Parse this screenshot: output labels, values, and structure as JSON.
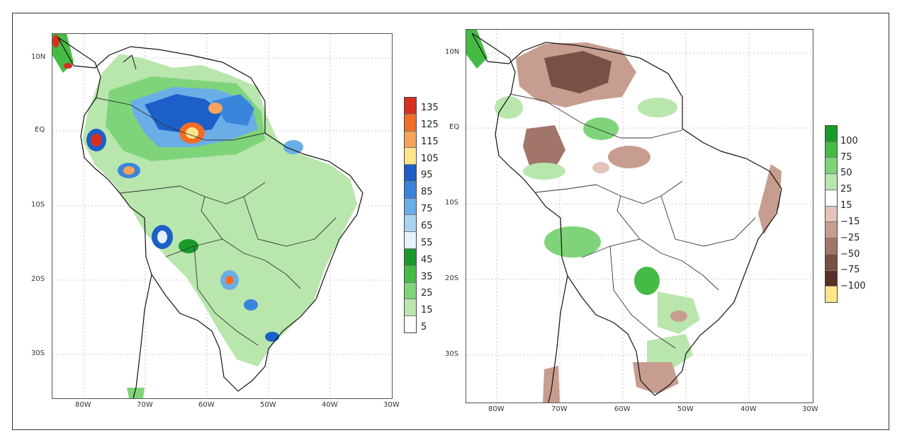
{
  "maps": [
    {
      "id": "left",
      "lat_labels": [
        "10N",
        "EQ",
        "10S",
        "20S",
        "30S"
      ],
      "lon_labels": [
        "80W",
        "70W",
        "60W",
        "50W",
        "40W",
        "30W"
      ],
      "legend": {
        "labels": [
          "135",
          "125",
          "115",
          "105",
          "95",
          "85",
          "75",
          "65",
          "55",
          "45",
          "35",
          "25",
          "15",
          "5"
        ],
        "colors": [
          "#d7301f",
          "#f46d25",
          "#f5a35a",
          "#fde68a",
          "#1d5fc8",
          "#3a85dc",
          "#6aaee8",
          "#a8d4f2",
          "#e3f3fb",
          "#1a9a2a",
          "#45bb45",
          "#7fd47a",
          "#b8e6ad",
          "#ffffff"
        ]
      }
    },
    {
      "id": "right",
      "lat_labels": [
        "10N",
        "EQ",
        "10S",
        "20S",
        "30S"
      ],
      "lon_labels": [
        "80W",
        "70W",
        "60W",
        "50W",
        "40W",
        "30W"
      ],
      "legend": {
        "labels": [
          "100",
          "75",
          "50",
          "25",
          "15",
          "−15",
          "−25",
          "−50",
          "−75",
          "−100"
        ],
        "colors": [
          "#1a9a2a",
          "#45bb45",
          "#7fd47a",
          "#b8e6ad",
          "#ffffff",
          "#e2c4b8",
          "#c79d8f",
          "#a1756a",
          "#7a4f44",
          "#5a2f28",
          "#fde68a"
        ]
      }
    }
  ],
  "colors": {
    "green_dark": "#1a9a2a",
    "green_mid": "#45bb45",
    "green_light": "#b8e6ad",
    "blue": "#1d5fc8",
    "blue_light": "#a8d4f2",
    "brown_dark": "#7a4f44",
    "brown_light": "#e2c4b8",
    "red": "#d7301f",
    "orange": "#f46d25"
  }
}
